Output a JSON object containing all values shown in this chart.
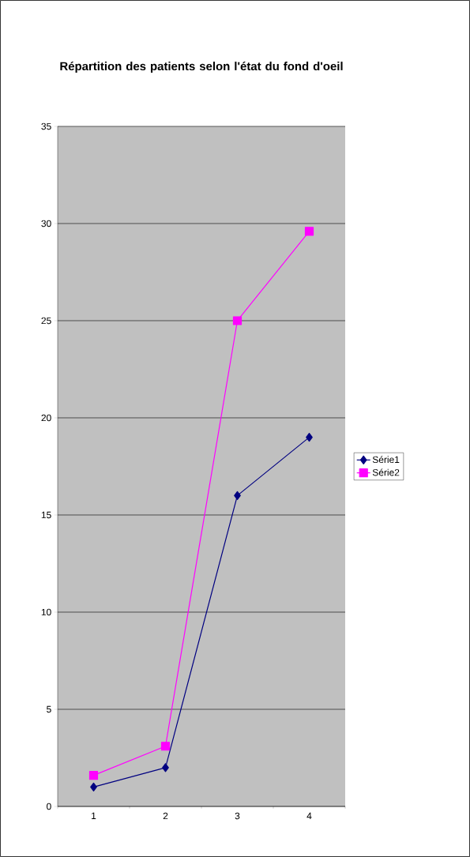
{
  "chart_data": {
    "type": "line",
    "title": "Répartition des patients selon l'état du fond d'oeil",
    "categories": [
      "1",
      "2",
      "3",
      "4"
    ],
    "series": [
      {
        "name": "Série1",
        "color": "#000080",
        "marker": "diamond",
        "values": [
          1,
          2,
          16,
          19
        ]
      },
      {
        "name": "Série2",
        "color": "#ff00ff",
        "marker": "square",
        "values": [
          1.6,
          3.1,
          25,
          29.6
        ]
      }
    ],
    "ylim": [
      0,
      35
    ],
    "yticks": [
      0,
      5,
      10,
      15,
      20,
      25,
      30,
      35
    ],
    "grid": "y",
    "legend": "right"
  }
}
